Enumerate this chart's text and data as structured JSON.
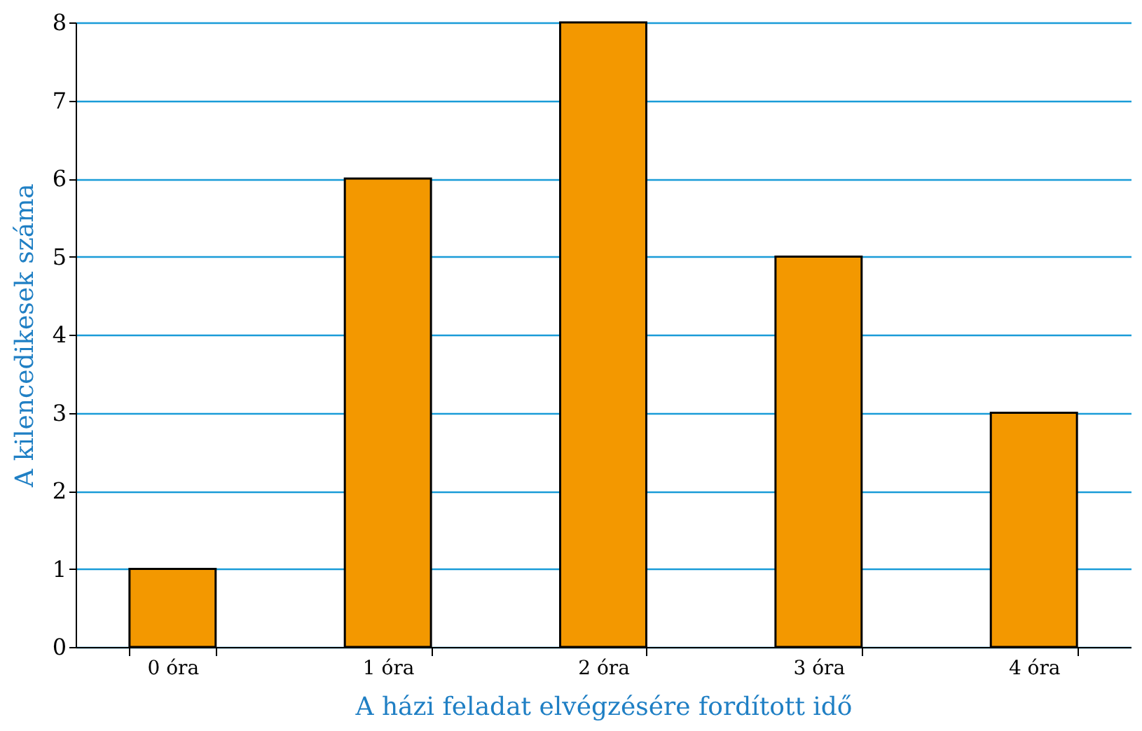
{
  "chart_data": {
    "type": "bar",
    "xlabel": "A házi feladat elvégzésére fordított idő",
    "ylabel": "A kilencedikesek száma",
    "categories": [
      "0 óra",
      "1 óra",
      "2 óra",
      "3 óra",
      "4 óra"
    ],
    "values": [
      1,
      6,
      8,
      5,
      3
    ],
    "color": "#f39800",
    "ylim": [
      0,
      8
    ],
    "yticks": [
      0,
      1,
      2,
      3,
      4,
      5,
      6,
      7,
      8
    ],
    "grid": "y"
  }
}
